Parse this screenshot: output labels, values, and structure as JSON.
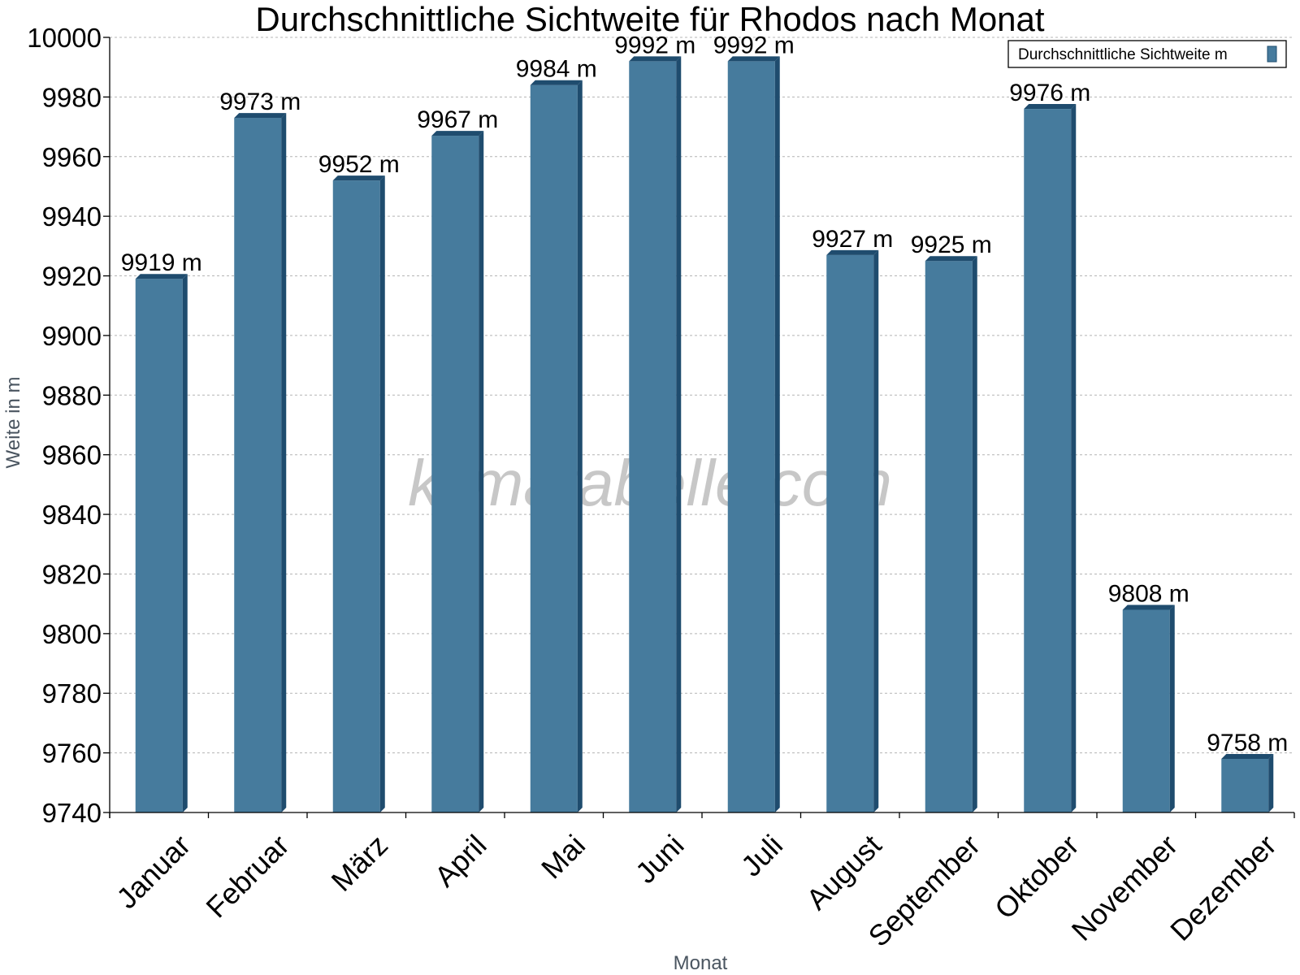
{
  "chart_data": {
    "type": "bar",
    "title": "Durchschnittliche Sichtweite für Rhodos nach Monat",
    "xlabel": "Monat",
    "ylabel": "Weite in m",
    "categories": [
      "Januar",
      "Februar",
      "März",
      "April",
      "Mai",
      "Juni",
      "Juli",
      "August",
      "September",
      "Oktober",
      "November",
      "Dezember"
    ],
    "series": [
      {
        "name": "Durchschnittliche Sichtweite m",
        "values": [
          9919,
          9973,
          9952,
          9967,
          9984,
          9992,
          9992,
          9927,
          9925,
          9976,
          9808,
          9758
        ],
        "data_labels": [
          "9919 m",
          "9973 m",
          "9952 m",
          "9967 m",
          "9984 m",
          "9992 m",
          "9992 m",
          "9927 m",
          "9925 m",
          "9976 m",
          "9808 m",
          "9758 m"
        ],
        "color": "#467b9d",
        "color_dark": "#1f4c6e"
      }
    ],
    "ylim": [
      9740,
      10000
    ],
    "yticks": [
      9740,
      9760,
      9780,
      9800,
      9820,
      9840,
      9860,
      9880,
      9900,
      9920,
      9940,
      9960,
      9980,
      10000
    ],
    "grid": true,
    "legend_position": "top-right",
    "watermark": "klimatabelle.com"
  }
}
